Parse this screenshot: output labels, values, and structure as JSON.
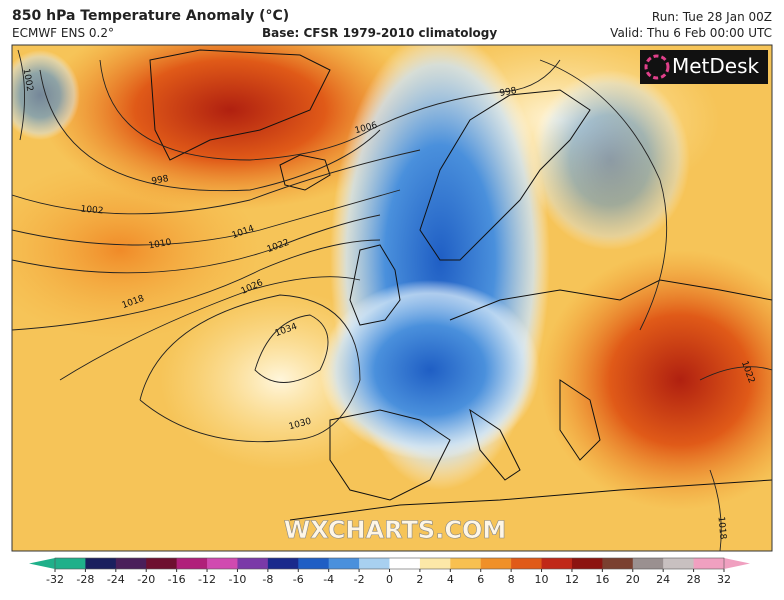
{
  "header": {
    "title": "850 hPa Temperature Anomaly (°C)",
    "model": "ECMWF ENS 0.2°",
    "base": "Base: CFSR 1979-2010 climatology",
    "run": "Run: Tue 28 Jan 00Z",
    "valid": "Valid: Thu 6 Feb 00:00 UTC"
  },
  "map": {
    "logo": "MetDesk",
    "watermark": "WXCHARTS.COM",
    "isobar_labels": [
      1002,
      998,
      1006,
      998,
      1002,
      1010,
      1014,
      1022,
      1018,
      1026,
      1034,
      1030,
      1022,
      1018
    ]
  },
  "colorbar": {
    "ticks": [
      -32,
      -28,
      -24,
      -20,
      -16,
      -12,
      -10,
      -8,
      -6,
      -4,
      -2,
      0,
      2,
      4,
      6,
      8,
      10,
      12,
      16,
      20,
      24,
      28,
      32
    ],
    "colors": [
      "#1fb08a",
      "#1a1f5e",
      "#4a1f5a",
      "#6e1030",
      "#b0207a",
      "#d04ab0",
      "#7a3aa8",
      "#1a2a8c",
      "#1f5ec4",
      "#4a90dc",
      "#a8d0f0",
      "#ffffff",
      "#fce8a8",
      "#f8c050",
      "#f09028",
      "#e05a18",
      "#c02818",
      "#8c1410",
      "#7a4030",
      "#9a9090",
      "#c8c0c0",
      "#f0a0c0"
    ]
  }
}
